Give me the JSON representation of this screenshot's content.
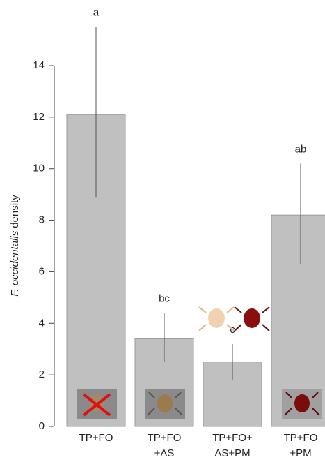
{
  "chart_data": {
    "type": "bar",
    "ylabel": {
      "species": "F. occidentalis",
      "text": "density"
    },
    "categories": [
      "TP+FO",
      "TP+FO\n+AS",
      "TP+FO+\nAS+PM",
      "TP+FO\n+PM"
    ],
    "values": [
      12.1,
      3.4,
      2.5,
      8.2
    ],
    "error_low": [
      8.9,
      2.5,
      1.8,
      6.3
    ],
    "error_high": [
      15.5,
      4.4,
      3.2,
      10.2
    ],
    "letters": [
      "a",
      "bc",
      "c",
      "ab"
    ],
    "color": "#c0c0c0",
    "ylim": [
      0,
      14
    ],
    "yticks": [
      0,
      2,
      4,
      6,
      8,
      10,
      12,
      14
    ]
  }
}
